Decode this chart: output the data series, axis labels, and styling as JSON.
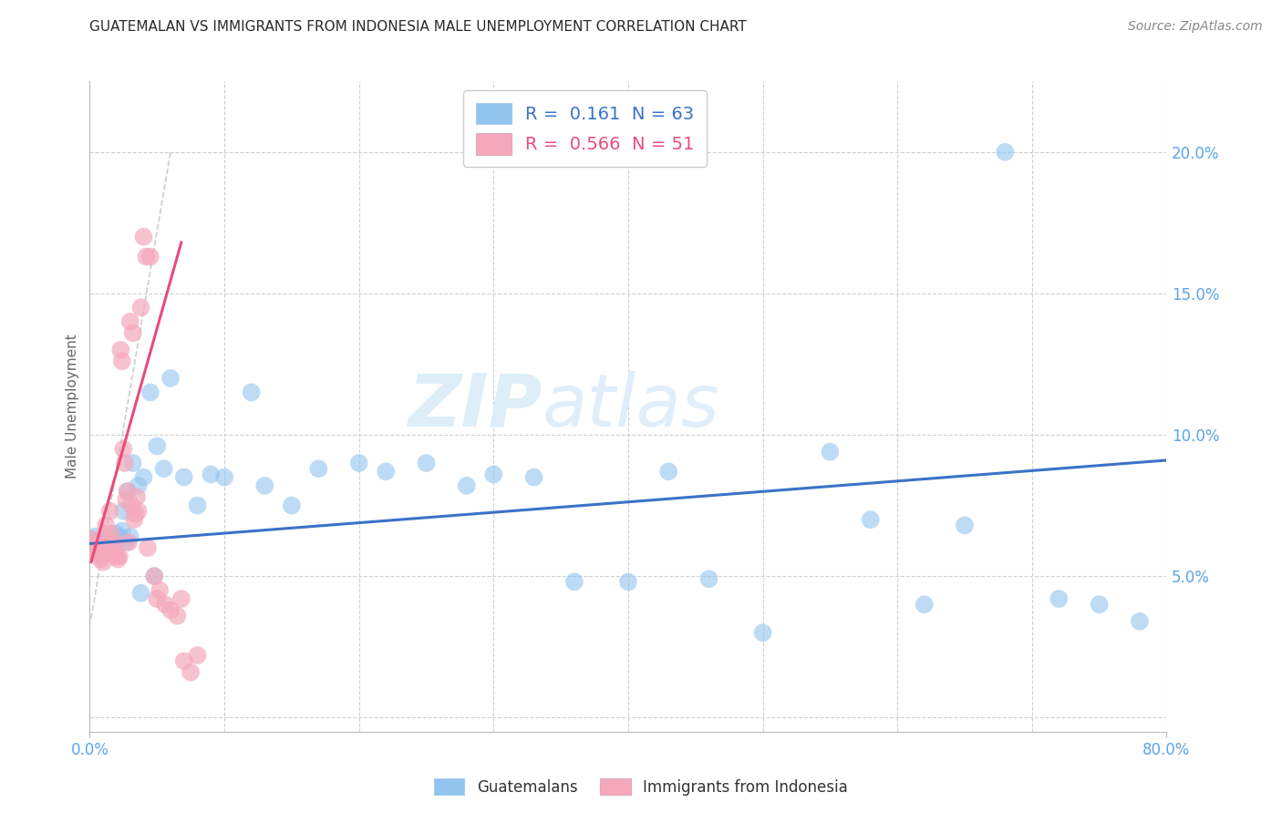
{
  "title": "GUATEMALAN VS IMMIGRANTS FROM INDONESIA MALE UNEMPLOYMENT CORRELATION CHART",
  "source": "Source: ZipAtlas.com",
  "ylabel": "Male Unemployment",
  "xlim": [
    0.0,
    0.8
  ],
  "ylim": [
    -0.005,
    0.225
  ],
  "blue_scatter_color": "#91c4ef",
  "pink_scatter_color": "#f5a8bc",
  "blue_line_color": "#3a72c8",
  "pink_line_color": "#e84c7a",
  "axis_tick_color": "#5ba3ea",
  "watermark_color": "#ddeef8",
  "grid_color": "#d0d0d0",
  "blue_R": "0.161",
  "blue_N": "63",
  "pink_R": "0.566",
  "pink_N": "51",
  "xtick_positions": [
    0.0,
    0.8
  ],
  "xtick_labels": [
    "0.0%",
    "80.0%"
  ],
  "xgrid_positions": [
    0.0,
    0.1,
    0.2,
    0.3,
    0.4,
    0.5,
    0.6,
    0.7,
    0.8
  ],
  "ytick_positions": [
    0.05,
    0.1,
    0.15,
    0.2
  ],
  "ytick_labels": [
    "5.0%",
    "10.0%",
    "15.0%",
    "20.0%"
  ],
  "blue_scatter_x": [
    0.001,
    0.002,
    0.003,
    0.004,
    0.005,
    0.006,
    0.007,
    0.008,
    0.009,
    0.01,
    0.011,
    0.012,
    0.013,
    0.014,
    0.015,
    0.016,
    0.017,
    0.018,
    0.02,
    0.022,
    0.025,
    0.028,
    0.032,
    0.036,
    0.04,
    0.045,
    0.05,
    0.055,
    0.06,
    0.07,
    0.08,
    0.09,
    0.1,
    0.12,
    0.13,
    0.15,
    0.17,
    0.2,
    0.22,
    0.25,
    0.28,
    0.3,
    0.33,
    0.36,
    0.4,
    0.43,
    0.46,
    0.5,
    0.55,
    0.58,
    0.62,
    0.65,
    0.68,
    0.72,
    0.75,
    0.78,
    0.019,
    0.021,
    0.024,
    0.027,
    0.03,
    0.038,
    0.048
  ],
  "blue_scatter_y": [
    0.063,
    0.061,
    0.062,
    0.064,
    0.06,
    0.062,
    0.06,
    0.061,
    0.059,
    0.062,
    0.063,
    0.06,
    0.061,
    0.063,
    0.063,
    0.062,
    0.062,
    0.063,
    0.065,
    0.064,
    0.073,
    0.08,
    0.09,
    0.082,
    0.085,
    0.115,
    0.096,
    0.088,
    0.12,
    0.085,
    0.075,
    0.086,
    0.085,
    0.115,
    0.082,
    0.075,
    0.088,
    0.09,
    0.087,
    0.09,
    0.082,
    0.086,
    0.085,
    0.048,
    0.048,
    0.087,
    0.049,
    0.03,
    0.094,
    0.07,
    0.04,
    0.068,
    0.2,
    0.042,
    0.04,
    0.034,
    0.061,
    0.064,
    0.066,
    0.062,
    0.064,
    0.044,
    0.05
  ],
  "pink_scatter_x": [
    0.001,
    0.002,
    0.003,
    0.004,
    0.005,
    0.006,
    0.007,
    0.008,
    0.009,
    0.01,
    0.011,
    0.012,
    0.013,
    0.014,
    0.015,
    0.016,
    0.017,
    0.018,
    0.019,
    0.02,
    0.021,
    0.022,
    0.023,
    0.024,
    0.025,
    0.026,
    0.027,
    0.028,
    0.03,
    0.032,
    0.034,
    0.036,
    0.038,
    0.04,
    0.042,
    0.045,
    0.048,
    0.052,
    0.056,
    0.06,
    0.065,
    0.07,
    0.075,
    0.08,
    0.029,
    0.031,
    0.033,
    0.035,
    0.043,
    0.05,
    0.068
  ],
  "pink_scatter_y": [
    0.063,
    0.061,
    0.06,
    0.058,
    0.062,
    0.06,
    0.058,
    0.056,
    0.057,
    0.055,
    0.065,
    0.068,
    0.06,
    0.062,
    0.073,
    0.065,
    0.06,
    0.062,
    0.058,
    0.057,
    0.056,
    0.057,
    0.13,
    0.126,
    0.095,
    0.09,
    0.077,
    0.08,
    0.14,
    0.136,
    0.072,
    0.073,
    0.145,
    0.17,
    0.163,
    0.163,
    0.05,
    0.045,
    0.04,
    0.038,
    0.036,
    0.02,
    0.016,
    0.022,
    0.062,
    0.075,
    0.07,
    0.078,
    0.06,
    0.042,
    0.042
  ],
  "blue_line_x": [
    0.0,
    0.8
  ],
  "blue_line_y": [
    0.0615,
    0.091
  ],
  "pink_line_x": [
    0.001,
    0.068
  ],
  "pink_line_y": [
    0.055,
    0.168
  ],
  "diag_line_x": [
    0.001,
    0.06
  ],
  "diag_line_y": [
    0.035,
    0.2
  ]
}
